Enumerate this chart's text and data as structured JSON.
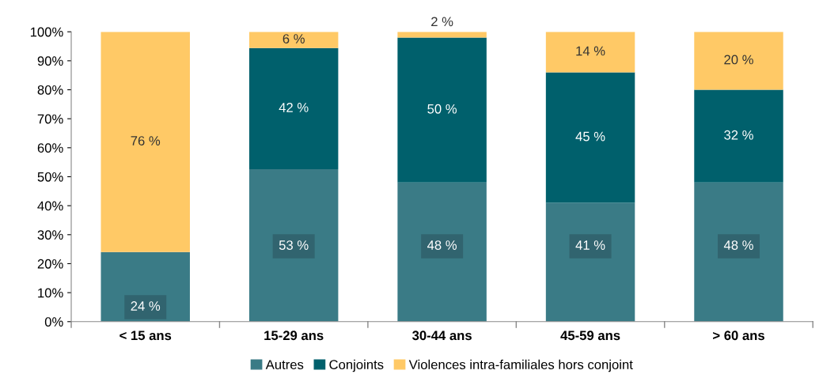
{
  "chart_data": {
    "type": "bar",
    "stacked": true,
    "categories": [
      "< 15 ans",
      "15-29 ans",
      "30-44 ans",
      "45-59 ans",
      "> 60 ans"
    ],
    "series": [
      {
        "name": "Autres",
        "color": "#3a7b86",
        "values": [
          24,
          52.6,
          48,
          41,
          48
        ],
        "value_labels": [
          "24 %",
          "53 %",
          "48 %",
          "41 %",
          "48 %"
        ]
      },
      {
        "name": "Conjoints",
        "color": "#00606c",
        "values": [
          0,
          41.8,
          50,
          45,
          32
        ],
        "value_labels": [
          null,
          "42 %",
          "50 %",
          "45 %",
          "32 %"
        ]
      },
      {
        "name": "Violences intra-familiales hors conjoint",
        "color": "#ffc966",
        "values": [
          76,
          5.6,
          2,
          14,
          20
        ],
        "value_labels": [
          "76 %",
          "6 %",
          "2 %",
          "14 %",
          "20 %"
        ]
      }
    ],
    "ylim": [
      0,
      100
    ],
    "yticks": [
      {
        "value": 0,
        "label": "0%"
      },
      {
        "value": 10,
        "label": "10%"
      },
      {
        "value": 20,
        "label": "20%"
      },
      {
        "value": 30,
        "label": "30%"
      },
      {
        "value": 40,
        "label": "40%"
      },
      {
        "value": 50,
        "label": "50%"
      },
      {
        "value": 60,
        "label": "60%"
      },
      {
        "value": 70,
        "label": "70%"
      },
      {
        "value": 80,
        "label": "80%"
      },
      {
        "value": 90,
        "label": "90%"
      },
      {
        "value": 100,
        "label": "100%"
      }
    ],
    "grid": false,
    "legend": "bottom"
  }
}
